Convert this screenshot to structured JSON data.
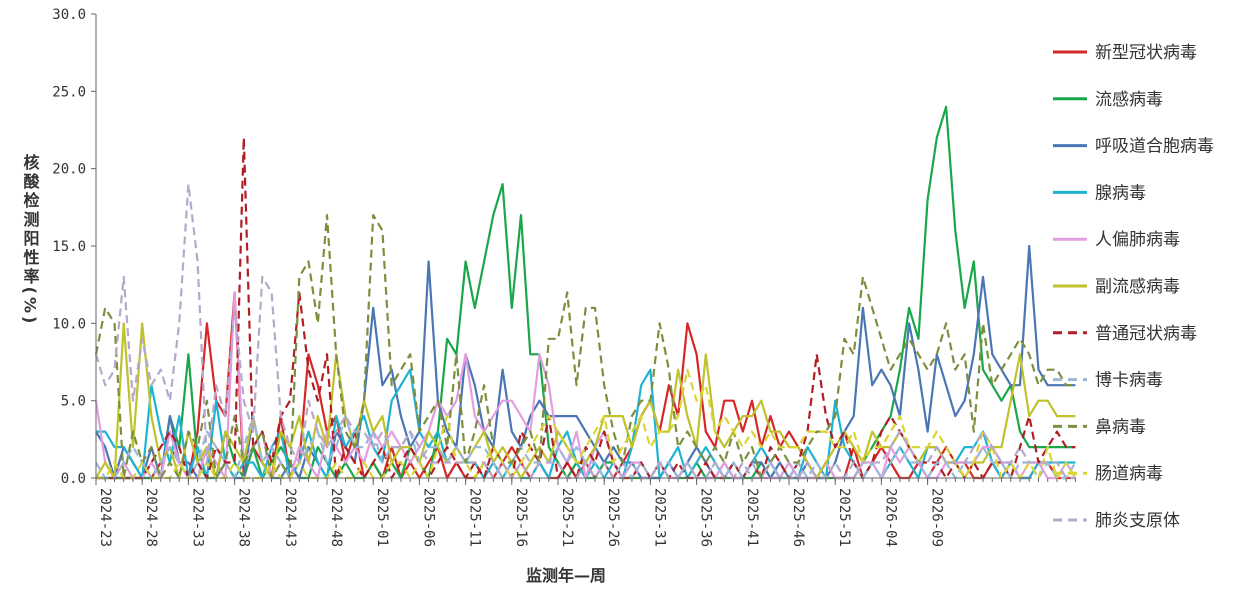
{
  "chart_data": {
    "type": "line",
    "ylabel": "核酸检测阳性率(%)",
    "xlabel": "监测年—周",
    "ylim": [
      0,
      30
    ],
    "yticks": [
      "0.0",
      "5.0",
      "10.0",
      "15.0",
      "20.0",
      "25.0",
      "30.0"
    ],
    "xticks": [
      "2024-23",
      "2024-28",
      "2024-33",
      "2024-38",
      "2024-43",
      "2024-48",
      "2025-01",
      "2025-06",
      "2025-11",
      "2025-16",
      "2025-21",
      "2025-26",
      "2025-31",
      "2025-36",
      "2025-41",
      "2025-46",
      "2025-51",
      "2026-04",
      "2026-09"
    ],
    "legend_position": "right",
    "series": [
      {
        "name": "新型冠状病毒",
        "color": "#d62728",
        "dash": false,
        "values": [
          0,
          0,
          0,
          0,
          0,
          0,
          0,
          1,
          2,
          1,
          0,
          3,
          10,
          5,
          4,
          12,
          0,
          2,
          1,
          0,
          4,
          0,
          1,
          8,
          6,
          3,
          4,
          1,
          3,
          0,
          1,
          0,
          2,
          0,
          1,
          0,
          1,
          2,
          0,
          1,
          0,
          0,
          1,
          0,
          1,
          2,
          1,
          0,
          1,
          0,
          0,
          1,
          0,
          1,
          0,
          1,
          0,
          1,
          2,
          4,
          5,
          3,
          6,
          4,
          10,
          8,
          3,
          2,
          5,
          5,
          3,
          5,
          2,
          4,
          2,
          3,
          2,
          1,
          0,
          1,
          0,
          0,
          2,
          0,
          1,
          2,
          1,
          0,
          0,
          1,
          0,
          1,
          2,
          1,
          1,
          0,
          0,
          1,
          0,
          1,
          0,
          0,
          1,
          1,
          0,
          0,
          0
        ]
      },
      {
        "name": "流感病毒",
        "color": "#1aa64b",
        "dash": false,
        "values": [
          0,
          0,
          0,
          0,
          0,
          0,
          0,
          0,
          4,
          2,
          8,
          1,
          0,
          0,
          3,
          1,
          0,
          2,
          0,
          1,
          2,
          1,
          0,
          0,
          2,
          1,
          0,
          1,
          0,
          0,
          1,
          0,
          1,
          0,
          2,
          1,
          0,
          3,
          9,
          8,
          14,
          11,
          14,
          17,
          19,
          11,
          17,
          8,
          8,
          2,
          1,
          0,
          1,
          0,
          0,
          1,
          1,
          0,
          0,
          0,
          0,
          0,
          1,
          0,
          0,
          1,
          0,
          0,
          0,
          0,
          0,
          0,
          1,
          0,
          0,
          0,
          0,
          0,
          0,
          0,
          0,
          0,
          0,
          1,
          2,
          3,
          4,
          7,
          11,
          9,
          18,
          22,
          24,
          16,
          11,
          14,
          7,
          6,
          5,
          6,
          3,
          2,
          2,
          2,
          2,
          2,
          2
        ]
      },
      {
        "name": "呼吸道合胞病毒",
        "color": "#4a76b4",
        "dash": false,
        "values": [
          3,
          2,
          0,
          2,
          1,
          0,
          2,
          0,
          4,
          1,
          1,
          0,
          2,
          0,
          1,
          0,
          0,
          4,
          1,
          0,
          0,
          1,
          0,
          2,
          1,
          0,
          3,
          2,
          1,
          5,
          11,
          6,
          7,
          4,
          2,
          3,
          14,
          5,
          3,
          2,
          8,
          6,
          3,
          2,
          7,
          3,
          2,
          4,
          5,
          4,
          4,
          4,
          4,
          3,
          2,
          1,
          2,
          1,
          1,
          0,
          0,
          0,
          1,
          0,
          1,
          2,
          1,
          0,
          1,
          0,
          0,
          1,
          1,
          0,
          1,
          0,
          0,
          1,
          0,
          0,
          1,
          3,
          4,
          11,
          6,
          7,
          6,
          4,
          10,
          7,
          3,
          8,
          6,
          4,
          5,
          8,
          13,
          8,
          7,
          6,
          6,
          15,
          7,
          6,
          6,
          6,
          6
        ]
      },
      {
        "name": "腺病毒",
        "color": "#1fb3d2",
        "dash": false,
        "values": [
          3,
          3,
          2,
          2,
          1,
          0,
          6,
          3,
          1,
          4,
          0,
          2,
          0,
          5,
          1,
          0,
          1,
          1,
          0,
          2,
          3,
          0,
          1,
          3,
          1,
          0,
          4,
          2,
          3,
          4,
          2,
          1,
          5,
          6,
          7,
          3,
          2,
          3,
          1,
          2,
          1,
          1,
          0,
          1,
          0,
          1,
          0,
          0,
          1,
          0,
          2,
          3,
          1,
          0,
          1,
          0,
          1,
          0,
          2,
          6,
          7,
          0,
          1,
          2,
          0,
          1,
          2,
          1,
          0,
          1,
          0,
          1,
          2,
          1,
          0,
          1,
          0,
          2,
          1,
          0,
          5,
          2,
          1,
          0,
          1,
          0,
          1,
          2,
          1,
          0,
          2,
          2,
          1,
          1,
          2,
          2,
          3,
          1,
          0,
          1,
          0,
          0,
          1,
          1,
          1,
          1,
          1
        ]
      },
      {
        "name": "人偏肺病毒",
        "color": "#e29ee0",
        "dash": false,
        "values": [
          5,
          1,
          0,
          1,
          0,
          0,
          1,
          0,
          3,
          1,
          0,
          0,
          2,
          1,
          0,
          12,
          1,
          2,
          3,
          0,
          1,
          0,
          2,
          1,
          0,
          3,
          2,
          1,
          2,
          1,
          3,
          2,
          3,
          2,
          1,
          2,
          3,
          5,
          4,
          5,
          8,
          4,
          3,
          4,
          5,
          5,
          4,
          3,
          8,
          6,
          2,
          1,
          3,
          0,
          2,
          3,
          1,
          0,
          1,
          1,
          0,
          1,
          0,
          0,
          1,
          0,
          0,
          0,
          1,
          0,
          0,
          1,
          0,
          0,
          0,
          1,
          0,
          0,
          0,
          1,
          0,
          0,
          0,
          1,
          1,
          0,
          2,
          1,
          2,
          1,
          0,
          0,
          1,
          1,
          1,
          1,
          2,
          2,
          1,
          1,
          0,
          1,
          1,
          0,
          0,
          1,
          0
        ]
      },
      {
        "name": "副流感病毒",
        "color": "#bfc22b",
        "dash": false,
        "values": [
          0,
          1,
          0,
          10,
          2,
          10,
          4,
          1,
          2,
          0,
          3,
          1,
          2,
          0,
          3,
          2,
          1,
          4,
          1,
          0,
          3,
          2,
          4,
          1,
          4,
          2,
          8,
          4,
          2,
          5,
          3,
          4,
          1,
          2,
          2,
          1,
          3,
          2,
          1,
          2,
          1,
          2,
          3,
          1,
          2,
          1,
          0,
          1,
          2,
          1,
          3,
          2,
          1,
          1,
          2,
          4,
          4,
          4,
          2,
          4,
          5,
          3,
          3,
          7,
          4,
          2,
          8,
          3,
          2,
          3,
          4,
          4,
          5,
          3,
          3,
          2,
          2,
          1,
          0,
          1,
          2,
          3,
          2,
          1,
          3,
          2,
          2,
          3,
          2,
          1,
          2,
          2,
          1,
          1,
          0,
          1,
          1,
          2,
          2,
          5,
          8,
          4,
          5,
          5,
          4,
          4,
          4
        ]
      },
      {
        "name": "普通冠状病毒",
        "color": "#b01e24",
        "dash": true,
        "values": [
          0,
          0,
          0,
          0,
          0,
          0,
          1,
          2,
          3,
          2,
          0,
          1,
          0,
          2,
          1,
          1,
          22,
          2,
          3,
          1,
          4,
          5,
          12,
          7,
          5,
          8,
          0,
          2,
          1,
          0,
          1,
          2,
          0,
          1,
          2,
          1,
          0,
          1,
          2,
          1,
          0,
          1,
          0,
          2,
          1,
          0,
          3,
          2,
          1,
          4,
          0,
          1,
          0,
          2,
          1,
          3,
          1,
          0,
          0,
          1,
          0,
          1,
          0,
          1,
          0,
          0,
          1,
          0,
          0,
          1,
          0,
          1,
          0,
          2,
          1,
          0,
          1,
          3,
          8,
          4,
          2,
          3,
          1,
          0,
          1,
          3,
          4,
          3,
          2,
          1,
          1,
          1,
          0,
          1,
          0,
          1,
          0,
          1,
          1,
          0,
          2,
          4,
          1,
          2,
          3,
          2,
          2
        ]
      },
      {
        "name": "博卡病毒",
        "color": "#9ab8d8",
        "dash": true,
        "values": [
          1,
          0,
          0,
          1,
          2,
          1,
          0,
          1,
          2,
          1,
          0,
          1,
          3,
          2,
          1,
          0,
          2,
          4,
          1,
          2,
          1,
          0,
          1,
          2,
          3,
          1,
          2,
          4,
          2,
          2,
          3,
          1,
          2,
          2,
          3,
          1,
          2,
          2,
          1,
          2,
          1,
          2,
          2,
          1,
          0,
          1,
          2,
          1,
          1,
          1,
          2,
          1,
          2,
          1,
          1,
          0,
          0,
          1,
          0,
          1,
          0,
          1,
          1,
          0,
          1,
          0,
          0,
          1,
          0,
          1,
          0,
          1,
          0,
          1,
          0,
          0,
          1,
          0,
          1,
          0,
          1,
          0,
          1,
          0,
          1,
          0,
          1,
          2,
          1,
          1,
          0,
          1,
          1,
          0,
          1,
          1,
          2,
          1,
          1,
          0,
          1,
          1,
          0,
          1,
          0,
          0,
          1
        ]
      },
      {
        "name": "鼻病毒",
        "color": "#7b8f3e",
        "dash": true,
        "values": [
          8,
          11,
          10,
          0,
          3,
          1,
          2,
          0,
          1,
          0,
          3,
          2,
          5,
          0,
          1,
          4,
          1,
          2,
          3,
          0,
          1,
          0,
          13,
          14,
          10,
          17,
          8,
          3,
          2,
          5,
          17,
          16,
          6,
          7,
          8,
          3,
          4,
          5,
          2,
          8,
          1,
          3,
          6,
          2,
          1,
          1,
          2,
          3,
          1,
          9,
          9,
          12,
          6,
          11,
          11,
          6,
          3,
          1,
          4,
          5,
          5,
          10,
          7,
          2,
          3,
          2,
          1,
          2,
          1,
          3,
          1,
          2,
          0,
          1,
          2,
          1,
          1,
          2,
          3,
          3,
          4,
          9,
          8,
          13,
          11,
          9,
          7,
          8,
          9,
          8,
          7,
          8,
          10,
          7,
          8,
          3,
          10,
          6,
          7,
          8,
          9,
          8,
          6,
          7,
          7,
          6,
          6
        ]
      },
      {
        "name": "肠道病毒",
        "color": "#d9d534",
        "dash": true,
        "values": [
          0,
          0,
          1,
          0,
          0,
          1,
          0,
          0,
          0,
          1,
          0,
          0,
          1,
          0,
          0,
          1,
          0,
          0,
          0,
          1,
          0,
          0,
          1,
          0,
          0,
          0,
          1,
          0,
          0,
          1,
          0,
          0,
          1,
          1,
          0,
          1,
          0,
          2,
          4,
          1,
          1,
          0,
          1,
          2,
          1,
          0,
          1,
          2,
          3,
          4,
          3,
          2,
          1,
          2,
          3,
          4,
          1,
          2,
          3,
          4,
          2,
          3,
          3,
          4,
          7,
          5,
          6,
          3,
          4,
          3,
          2,
          3,
          2,
          3,
          2,
          2,
          2,
          3,
          3,
          3,
          2,
          2,
          3,
          1,
          2,
          2,
          3,
          4,
          2,
          2,
          2,
          3,
          2,
          1,
          0,
          1,
          3,
          2,
          0,
          1,
          0,
          1,
          0,
          2,
          0,
          1,
          0
        ]
      },
      {
        "name": "肺炎支原体",
        "color": "#b6a8cc",
        "dash": true,
        "values": [
          8,
          6,
          7,
          13,
          5,
          9,
          6,
          7,
          5,
          10,
          19,
          14,
          1,
          6,
          4,
          11,
          5,
          3,
          13,
          12,
          4,
          2,
          1,
          5,
          3,
          2,
          3,
          4,
          3,
          3,
          2,
          3,
          2,
          2,
          3,
          2,
          1,
          1,
          1,
          1,
          1,
          1,
          1,
          0,
          1,
          0,
          1,
          0,
          1,
          1,
          1,
          0,
          0,
          1,
          0,
          1,
          0,
          0,
          1,
          0,
          0,
          1,
          0,
          0,
          1,
          0,
          0,
          1,
          0,
          0,
          1,
          0,
          0,
          1,
          0,
          0,
          0,
          1,
          0,
          0,
          1,
          0,
          0,
          1,
          1,
          1,
          2,
          3,
          2,
          1,
          1,
          2,
          1,
          1,
          1,
          2,
          3,
          2,
          1,
          1,
          2,
          1,
          1,
          1,
          1,
          0,
          0
        ]
      }
    ]
  }
}
